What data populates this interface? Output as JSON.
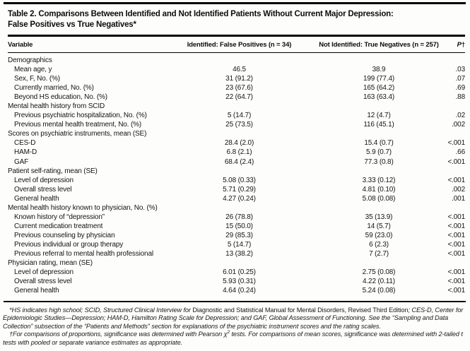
{
  "colors": {
    "page_background": "#fdfdfc",
    "text": "#141414",
    "rule": "#000000"
  },
  "title": {
    "line1": "Table 2. Comparisons Between Identified and Not Identified Patients Without Current Major Depression:",
    "line2": "False Positives vs True Negatives*"
  },
  "table": {
    "col_variable": "Variable",
    "col_identified": "Identified: False Positives (n = 34)",
    "col_not_identified": "Not Identified: True Negatives (n = 257)",
    "col_p_label": "P",
    "col_p_dagger": "†",
    "rows": [
      {
        "section": true,
        "variable": "Demographics"
      },
      {
        "section": false,
        "variable": "Mean age, y",
        "identified": "46.5",
        "not_identified": "38.9",
        "p": ".03"
      },
      {
        "section": false,
        "variable": "Sex, F, No. (%)",
        "identified": "31 (91.2)",
        "not_identified": "199 (77.4)",
        "p": ".07"
      },
      {
        "section": false,
        "variable": "Currently married, No. (%)",
        "identified": "23 (67.6)",
        "not_identified": "165 (64.2)",
        "p": ".69"
      },
      {
        "section": false,
        "variable": "Beyond HS education, No. (%)",
        "identified": "22 (64.7)",
        "not_identified": "163 (63.4)",
        "p": ".88"
      },
      {
        "section": true,
        "variable": "Mental health history from SCID"
      },
      {
        "section": false,
        "variable": "Previous psychiatric hospitalization, No. (%)",
        "identified": "5 (14.7)",
        "not_identified": "12 (4.7)",
        "p": ".02"
      },
      {
        "section": false,
        "variable": "Previous mental health treatment, No. (%)",
        "identified": "25 (73.5)",
        "not_identified": "116 (45.1)",
        "p": ".002"
      },
      {
        "section": true,
        "variable": "Scores on psychiatric instruments, mean (SE)"
      },
      {
        "section": false,
        "variable": "CES-D",
        "identified": "28.4 (2.0)",
        "not_identified": "15.4 (0.7)",
        "p": "<.001"
      },
      {
        "section": false,
        "variable": "HAM-D",
        "identified": "6.8 (2.1)",
        "not_identified": "5.9 (0.7)",
        "p": ".66"
      },
      {
        "section": false,
        "variable": "GAF",
        "identified": "68.4 (2.4)",
        "not_identified": "77.3 (0.8)",
        "p": "<.001"
      },
      {
        "section": true,
        "variable": "Patient self-rating, mean (SE)"
      },
      {
        "section": false,
        "variable": "Level of depression",
        "identified": "5.08 (0.33)",
        "not_identified": "3.33 (0.12)",
        "p": "<.001"
      },
      {
        "section": false,
        "variable": "Overall stress level",
        "identified": "5.71 (0.29)",
        "not_identified": "4.81 (0.10)",
        "p": ".002"
      },
      {
        "section": false,
        "variable": "General health",
        "identified": "4.27 (0.24)",
        "not_identified": "5.08 (0.08)",
        "p": ".001"
      },
      {
        "section": true,
        "variable": "Mental health history known to physician, No. (%)"
      },
      {
        "section": false,
        "variable": "Known history of “depression”",
        "identified": "26 (78.8)",
        "not_identified": "35 (13.9)",
        "p": "<.001"
      },
      {
        "section": false,
        "variable": "Current medication treatment",
        "identified": "15 (50.0)",
        "not_identified": "14 (5.7)",
        "p": "<.001"
      },
      {
        "section": false,
        "variable": "Previous counseling by physician",
        "identified": "29 (85.3)",
        "not_identified": "59 (23.0)",
        "p": "<.001"
      },
      {
        "section": false,
        "variable": "Previous individual or group therapy",
        "identified": "5 (14.7)",
        "not_identified": "6 (2.3)",
        "p": "<.001"
      },
      {
        "section": false,
        "variable": "Previous referral to mental health professional",
        "identified": "13 (38.2)",
        "not_identified": "7 (2.7)",
        "p": "<.001"
      },
      {
        "section": true,
        "variable": "Physician rating, mean (SE)"
      },
      {
        "section": false,
        "variable": "Level of depression",
        "identified": "6.01 (0.25)",
        "not_identified": "2.75 (0.08)",
        "p": "<.001"
      },
      {
        "section": false,
        "variable": "Overall stress level",
        "identified": "5.93 (0.31)",
        "not_identified": "4.22 (0.11)",
        "p": "<.001"
      },
      {
        "section": false,
        "variable": "General health",
        "identified": "4.64 (0.24)",
        "not_identified": "5.24 (0.08)",
        "p": "<.001"
      }
    ]
  },
  "footnotes": {
    "note1": {
      "italic1": "*HS indicates high school; SCID, Structured Clinical Interview for ",
      "roman": "Diagnostic and Statistical Manual for Mental Disorders, Revised Third Edition",
      "italic2": "; CES-D, Center for Epidemiologic Studies—Depression; HAM-D, Hamilton Rating Scale for Depression; and GAF, Global Assessment of Functioning. See the “Sampling and Data Collection” subsection of the “Patients and Methods” section for explanations of the psychiatric instrument scores and the rating scales."
    },
    "note2": {
      "part1": "†For comparisons of proportions, significance was determined with Pearson χ",
      "sup": "2",
      "part2": " tests. For comparisons of mean scores, significance was determined with 2-tailed t tests with pooled or separate variance estimates as appropriate."
    }
  }
}
